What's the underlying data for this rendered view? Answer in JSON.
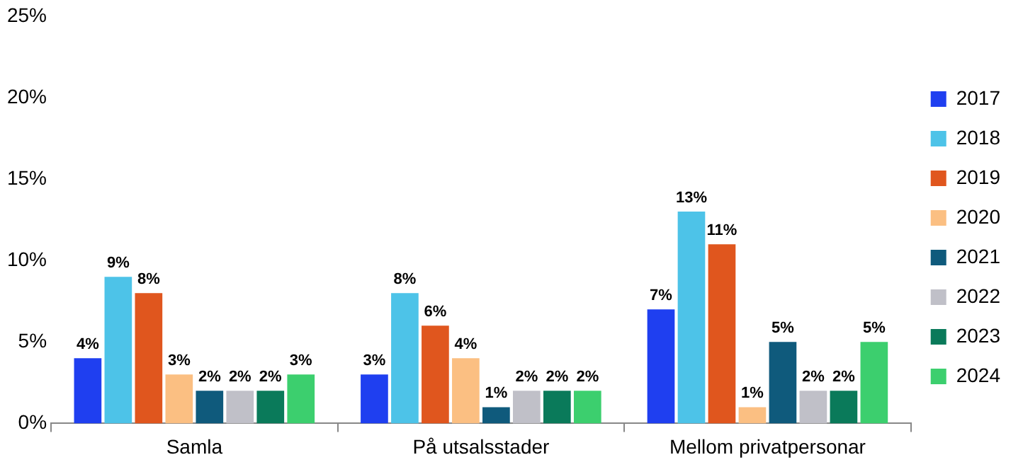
{
  "chart_data": {
    "type": "bar",
    "categories": [
      "Samla",
      "På utsalsstader",
      "Mellom privatpersonar"
    ],
    "series": [
      {
        "name": "2017",
        "color": "#1f3ff0",
        "values": [
          4,
          3,
          7
        ],
        "value_labels": [
          "4%",
          "3%",
          "7%"
        ]
      },
      {
        "name": "2018",
        "color": "#4dc3e8",
        "values": [
          9,
          8,
          13
        ],
        "value_labels": [
          "9%",
          "8%",
          "13%"
        ]
      },
      {
        "name": "2019",
        "color": "#e0561e",
        "values": [
          8,
          6,
          11
        ],
        "value_labels": [
          "8%",
          "6%",
          "11%"
        ]
      },
      {
        "name": "2020",
        "color": "#fbbf82",
        "values": [
          3,
          4,
          1
        ],
        "value_labels": [
          "3%",
          "4%",
          "1%"
        ]
      },
      {
        "name": "2021",
        "color": "#0f5a7c",
        "values": [
          2,
          1,
          5
        ],
        "value_labels": [
          "2%",
          "1%",
          "5%"
        ]
      },
      {
        "name": "2022",
        "color": "#c0c0c8",
        "values": [
          2,
          2,
          2
        ],
        "value_labels": [
          "2%",
          "2%",
          "2%"
        ]
      },
      {
        "name": "2023",
        "color": "#0a7a5a",
        "values": [
          2,
          2,
          2
        ],
        "value_labels": [
          "2%",
          "2%",
          "2%"
        ]
      },
      {
        "name": "2024",
        "color": "#3ccf6e",
        "values": [
          3,
          2,
          5
        ],
        "value_labels": [
          "3%",
          "2%",
          "5%"
        ]
      }
    ],
    "ylim": [
      0,
      25
    ],
    "yticks": [
      {
        "value": 0,
        "label": "0%"
      },
      {
        "value": 5,
        "label": "5%"
      },
      {
        "value": 10,
        "label": "10%"
      },
      {
        "value": 15,
        "label": "15%"
      },
      {
        "value": 20,
        "label": "20%"
      },
      {
        "value": 25,
        "label": "25%"
      }
    ],
    "legend": "right"
  }
}
